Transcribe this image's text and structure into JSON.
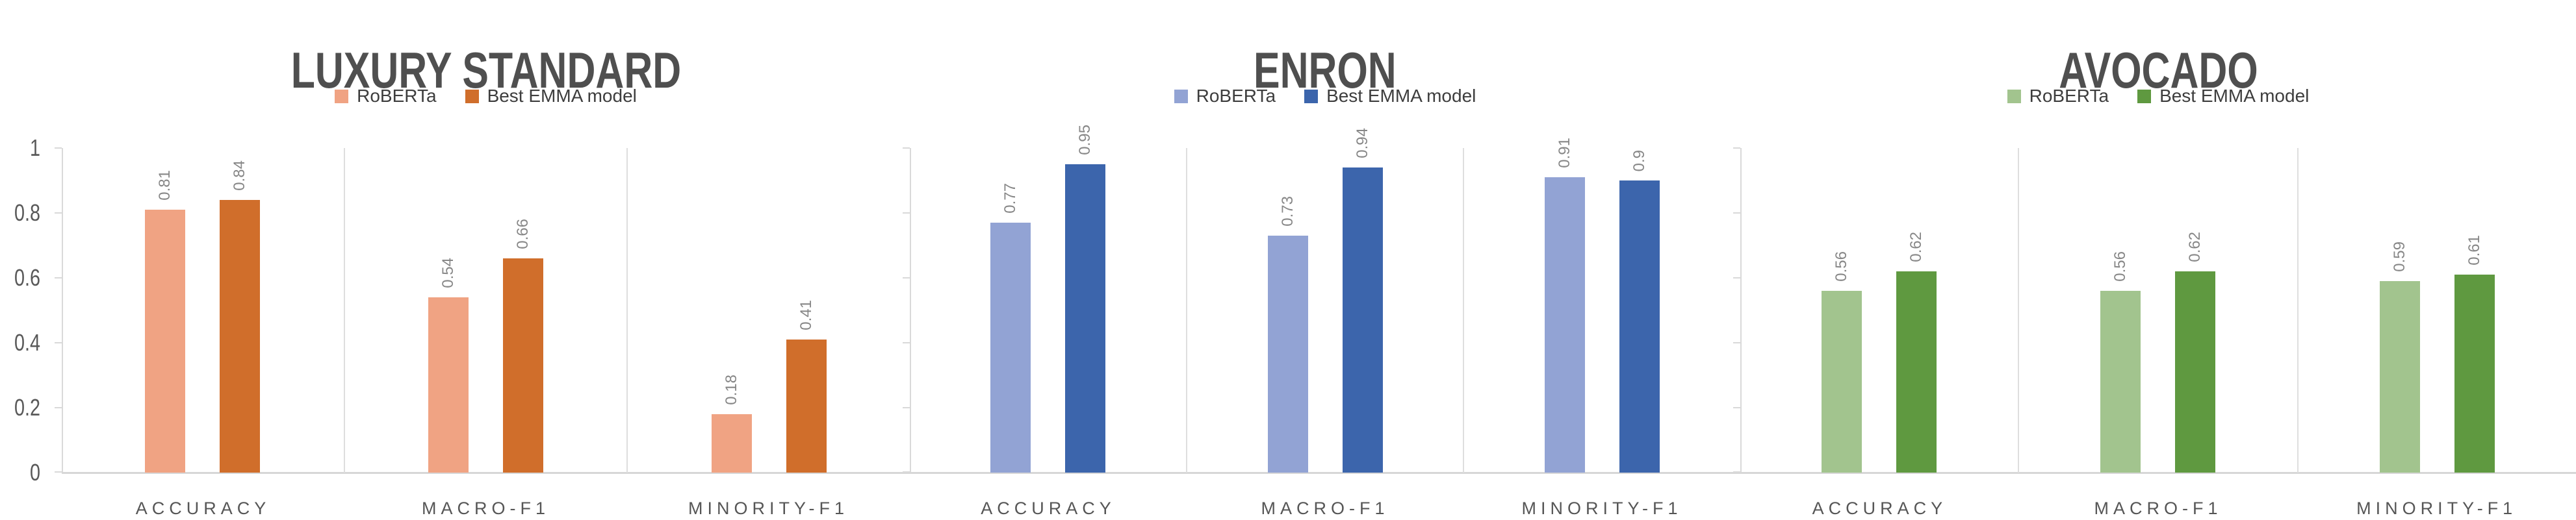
{
  "y_axis": {
    "ticks": [
      "1",
      "0.8",
      "0.6",
      "0.4",
      "0.2",
      "0"
    ],
    "min": 0,
    "max": 1
  },
  "style": {
    "line_gray": "#d9d9d9",
    "title_gray": "#4f4f4f",
    "label_gray": "#878787"
  },
  "chart_data": [
    {
      "type": "bar",
      "title": "LUXURY STANDARD",
      "categories": [
        "ACCURACY",
        "MACRO-F1",
        "MINORITY-F1"
      ],
      "ylim": [
        0,
        1
      ],
      "y_ticks": [
        "1",
        "0.8",
        "0.6",
        "0.4",
        "0.2",
        "0"
      ],
      "legend_position": "top",
      "grid": "vertical-category-separators",
      "series": [
        {
          "name": "RoBERTa",
          "color": "#F0A383",
          "values": [
            0.81,
            0.54,
            0.18
          ],
          "labels": [
            "0.81",
            "0.54",
            "0.18"
          ]
        },
        {
          "name": "Best EMMA model",
          "color": "#D06E2B",
          "values": [
            0.84,
            0.66,
            0.41
          ],
          "labels": [
            "0.84",
            "0.66",
            "0.41"
          ]
        }
      ]
    },
    {
      "type": "bar",
      "title": "ENRON",
      "categories": [
        "ACCURACY",
        "MACRO-F1",
        "MINORITY-F1"
      ],
      "ylim": [
        0,
        1
      ],
      "y_ticks": [
        "1",
        "0.8",
        "0.6",
        "0.4",
        "0.2",
        "0"
      ],
      "legend_position": "top",
      "grid": "vertical-category-separators",
      "series": [
        {
          "name": "RoBERTa",
          "color": "#92A3D4",
          "values": [
            0.77,
            0.73,
            0.91
          ],
          "labels": [
            "0.77",
            "0.73",
            "0.91"
          ]
        },
        {
          "name": "Best EMMA model",
          "color": "#3C65AC",
          "values": [
            0.95,
            0.94,
            0.9
          ],
          "labels": [
            "0.95",
            "0.94",
            "0.9"
          ]
        }
      ]
    },
    {
      "type": "bar",
      "title": "AVOCADO",
      "categories": [
        "ACCURACY",
        "MACRO-F1",
        "MINORITY-F1"
      ],
      "ylim": [
        0,
        1
      ],
      "y_ticks": [
        "1",
        "0.8",
        "0.6",
        "0.4",
        "0.2",
        "0"
      ],
      "legend_position": "top",
      "grid": "vertical-category-separators",
      "series": [
        {
          "name": "RoBERTa",
          "color": "#A2C48E",
          "values": [
            0.56,
            0.56,
            0.59
          ],
          "labels": [
            "0.56",
            "0.56",
            "0.59"
          ]
        },
        {
          "name": "Best EMMA model",
          "color": "#5F9940",
          "values": [
            0.62,
            0.62,
            0.61
          ],
          "labels": [
            "0.62",
            "0.62",
            "0.61"
          ]
        }
      ]
    }
  ]
}
